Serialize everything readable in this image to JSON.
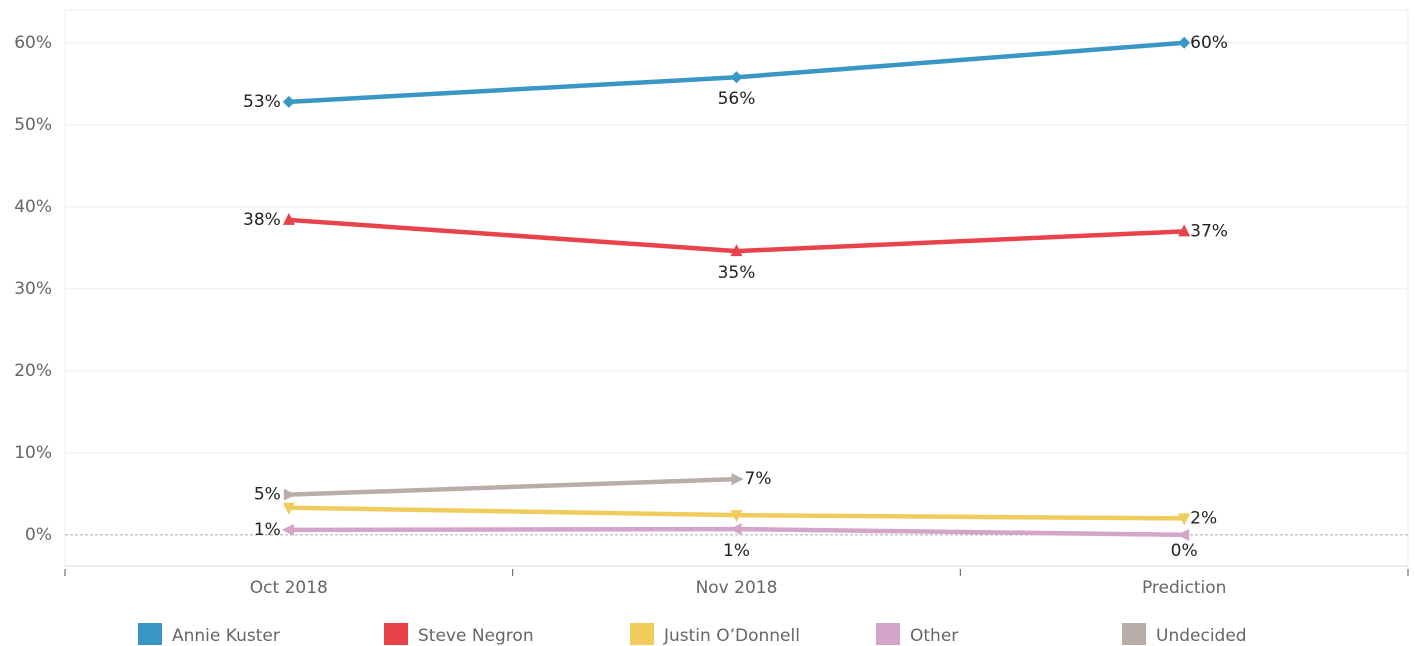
{
  "chart_data": {
    "type": "line",
    "categories": [
      "Oct 2018",
      "Nov 2018",
      "Prediction"
    ],
    "series": [
      {
        "name": "Annie Kuster",
        "color": "#3a96c4",
        "values": [
          52.8,
          55.8,
          60.0
        ],
        "value_labels": [
          "53%",
          "56%",
          "60%"
        ]
      },
      {
        "name": "Steve Negron",
        "color": "#e8424a",
        "values": [
          38.4,
          34.6,
          37.0
        ],
        "value_labels": [
          "38%",
          "35%",
          "37%"
        ]
      },
      {
        "name": "Justin O’Donnell",
        "color": "#f0cc5c",
        "values": [
          3.3,
          2.4,
          2.0
        ],
        "value_labels": [
          null,
          null,
          "2%"
        ]
      },
      {
        "name": "Other",
        "color": "#d4a5c9",
        "values": [
          0.6,
          0.7,
          0.0
        ],
        "value_labels": [
          "1%",
          "1%",
          "0%"
        ]
      },
      {
        "name": "Undecided",
        "color": "#b8ada8",
        "values": [
          4.9,
          6.8,
          null
        ],
        "value_labels": [
          "5%",
          "7%",
          null
        ]
      }
    ],
    "ylim": [
      -3.8,
      64
    ],
    "yticks": [
      {
        "value": 0,
        "label": "0%"
      },
      {
        "value": 10,
        "label": "10%"
      },
      {
        "value": 20,
        "label": "20%"
      },
      {
        "value": 30,
        "label": "30%"
      },
      {
        "value": 40,
        "label": "40%"
      },
      {
        "value": 50,
        "label": "50%"
      },
      {
        "value": 60,
        "label": "60%"
      }
    ],
    "grid": true
  }
}
